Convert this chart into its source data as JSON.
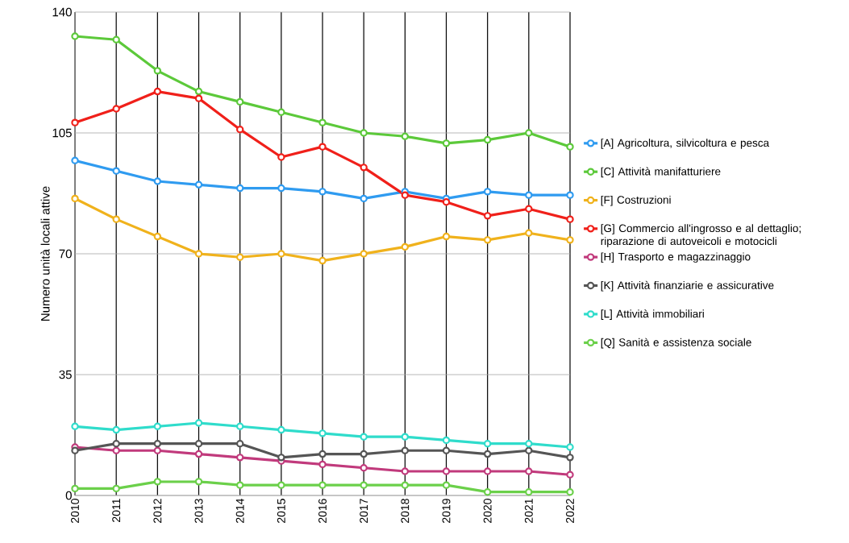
{
  "chart_data": {
    "type": "line",
    "ylabel": "Numero unità locali attive",
    "categories": [
      "2010",
      "2011",
      "2012",
      "2013",
      "2014",
      "2015",
      "2016",
      "2017",
      "2018",
      "2019",
      "2020",
      "2021",
      "2022"
    ],
    "ylim": [
      0,
      140
    ],
    "yticks": [
      0,
      35,
      70,
      105,
      140
    ],
    "grid": true,
    "legend": "right",
    "marker": "circle",
    "line_style": "solid",
    "series": [
      {
        "name": "[A] Agricoltura, silvicoltura e pesca",
        "color": "#2f9bf0",
        "values": [
          97,
          94,
          91,
          90,
          89,
          89,
          88,
          86,
          88,
          86,
          88,
          87,
          87
        ]
      },
      {
        "name": "[C] Attività manifatturiere",
        "color": "#5cc93a",
        "values": [
          133,
          132,
          123,
          117,
          114,
          111,
          108,
          105,
          104,
          102,
          103,
          105,
          101
        ]
      },
      {
        "name": "[F] Costruzioni",
        "color": "#f0b21c",
        "values": [
          86,
          80,
          75,
          70,
          69,
          70,
          68,
          70,
          72,
          75,
          74,
          76,
          74
        ]
      },
      {
        "name": "[G] Commercio all'ingrosso e al dettaglio; riparazione di autoveicoli e motocicli",
        "color": "#f0201a",
        "values": [
          108,
          112,
          117,
          115,
          106,
          98,
          101,
          95,
          87,
          85,
          81,
          83,
          80
        ]
      },
      {
        "name": "[H] Trasporto e magazzinaggio",
        "color": "#c13a7c",
        "values": [
          14,
          13,
          13,
          12,
          11,
          10,
          9,
          8,
          7,
          7,
          7,
          7,
          6
        ]
      },
      {
        "name": "[K] Attività finanziarie e assicurative",
        "color": "#555555",
        "values": [
          13,
          15,
          15,
          15,
          15,
          11,
          12,
          12,
          13,
          13,
          12,
          13,
          11
        ]
      },
      {
        "name": "[L] Attività immobiliari",
        "color": "#2fdccb",
        "values": [
          20,
          19,
          20,
          21,
          20,
          19,
          18,
          17,
          17,
          16,
          15,
          15,
          14
        ]
      },
      {
        "name": "[Q] Sanità e assistenza sociale",
        "color": "#6bd04a",
        "values": [
          2,
          2,
          4,
          4,
          3,
          3,
          3,
          3,
          3,
          3,
          1,
          1,
          1
        ]
      }
    ]
  }
}
